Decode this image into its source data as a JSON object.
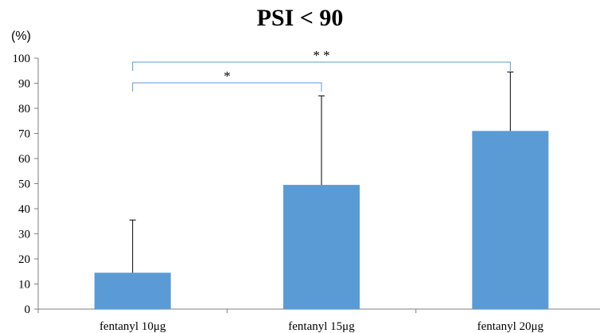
{
  "chart_data": {
    "type": "bar",
    "title": "PSI < 90",
    "ylabel": "(%)",
    "ylim": [
      0,
      100
    ],
    "yticks": [
      0,
      10,
      20,
      30,
      40,
      50,
      60,
      70,
      80,
      90,
      100
    ],
    "categories": [
      "fentanyl 10μg",
      "fentanyl 15μg",
      "fentanyl 20μg"
    ],
    "values": [
      14.5,
      49.5,
      71
    ],
    "error_upper": [
      35.5,
      85,
      94.5
    ],
    "bar_color": "#5b9bd5",
    "bracket_color": "#5b9bd5",
    "grid": false,
    "significance": [
      {
        "from": 0,
        "to": 1,
        "label": "*"
      },
      {
        "from": 0,
        "to": 2,
        "label": "* *"
      }
    ]
  }
}
